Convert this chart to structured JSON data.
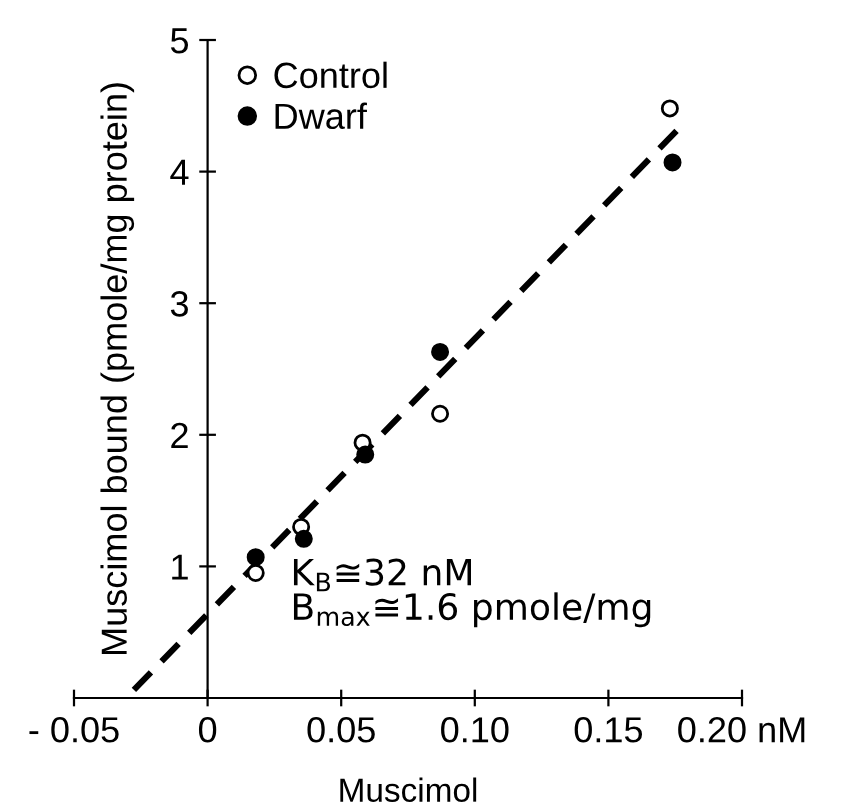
{
  "chart_data": {
    "type": "scatter",
    "xlabel": "Muscimol",
    "ylabel": "Muscimol bound (pmole/mg protein)",
    "xlim": [
      -0.05,
      0.2
    ],
    "ylim": [
      0,
      5
    ],
    "xticks": [
      {
        "value": -0.05,
        "label": "- 0.05"
      },
      0,
      0.05,
      {
        "value": 0.1,
        "label": "0.10"
      },
      0.15,
      {
        "value": 0.2,
        "label": "0.20 nM"
      }
    ],
    "yticks": [
      1,
      2,
      3,
      4,
      5
    ],
    "grid": false,
    "legend": "top left",
    "marker": "circle",
    "annotations": [
      "K$_{B}$≅32 nM",
      "B$_{max}$≅1.6 pmole/mg"
    ],
    "series": [
      {
        "name": "Control",
        "color": "#ffffff",
        "x": [
          0.018,
          0.035,
          0.058,
          0.087,
          0.173
        ],
        "values": [
          0.95,
          1.3,
          1.94,
          2.16,
          4.48
        ]
      },
      {
        "name": "Dwarf",
        "color": "#000000",
        "x": [
          0.018,
          0.036,
          0.059,
          0.087,
          0.174
        ],
        "values": [
          1.07,
          1.21,
          1.85,
          2.63,
          4.07
        ]
      },
      {
        "type": "line",
        "color": "#000000",
        "line_style": "dashed",
        "marker": "none",
        "x": [
          -0.0305,
          0.1755
        ],
        "values": [
          0,
          4.31
        ]
      }
    ]
  }
}
